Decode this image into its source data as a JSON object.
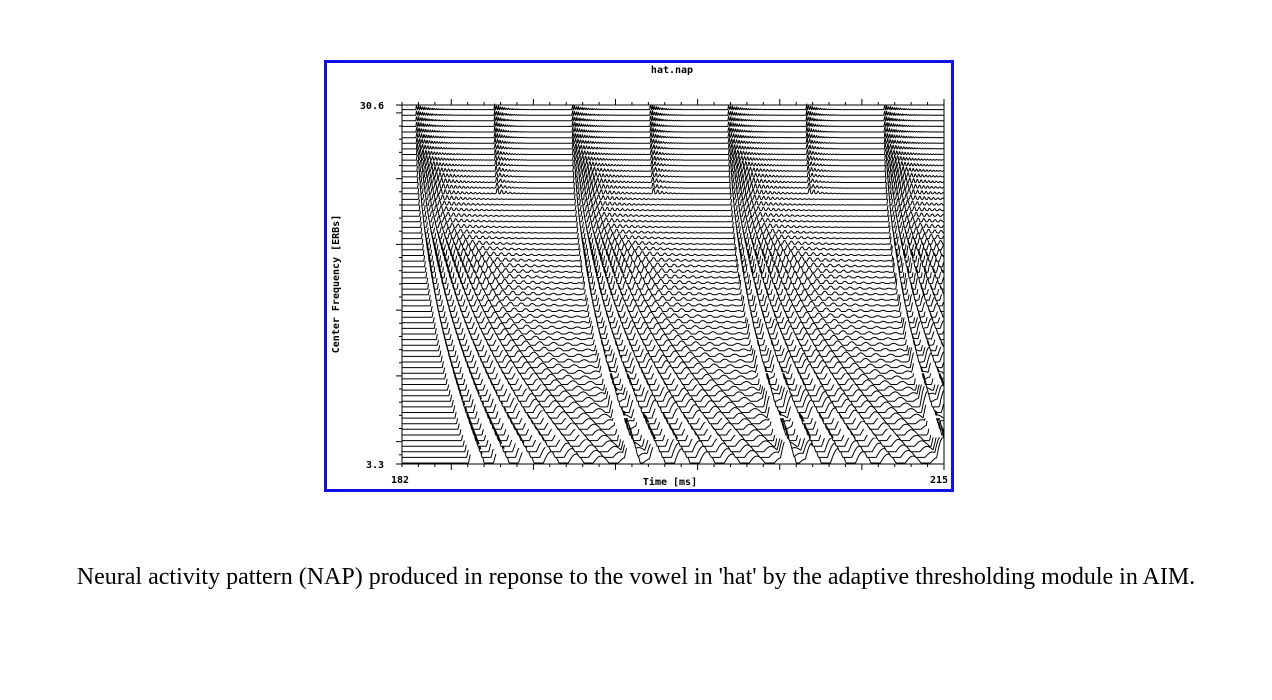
{
  "figure": {
    "border_color": "#1010e0",
    "caption": "Neural activity pattern (NAP) produced in reponse to the vowel in 'hat' by the adaptive thresholding module in AIM."
  },
  "chart_data": {
    "type": "line",
    "title": "hat.nap",
    "xlabel": "Time [ms]",
    "ylabel": "Center Frequency [ERBs]",
    "xlim": [
      182,
      215
    ],
    "ylim": [
      3.3,
      30.6
    ],
    "x_tick_labels": [
      "182",
      "215"
    ],
    "y_tick_labels": [
      "3.3",
      "30.6"
    ],
    "channel_count": 64,
    "glottal_pulse_times_ms": [
      182.6,
      192.1,
      201.6,
      211.1
    ],
    "pulse_period_ms": 9.5,
    "grid": false,
    "legend": "none"
  }
}
